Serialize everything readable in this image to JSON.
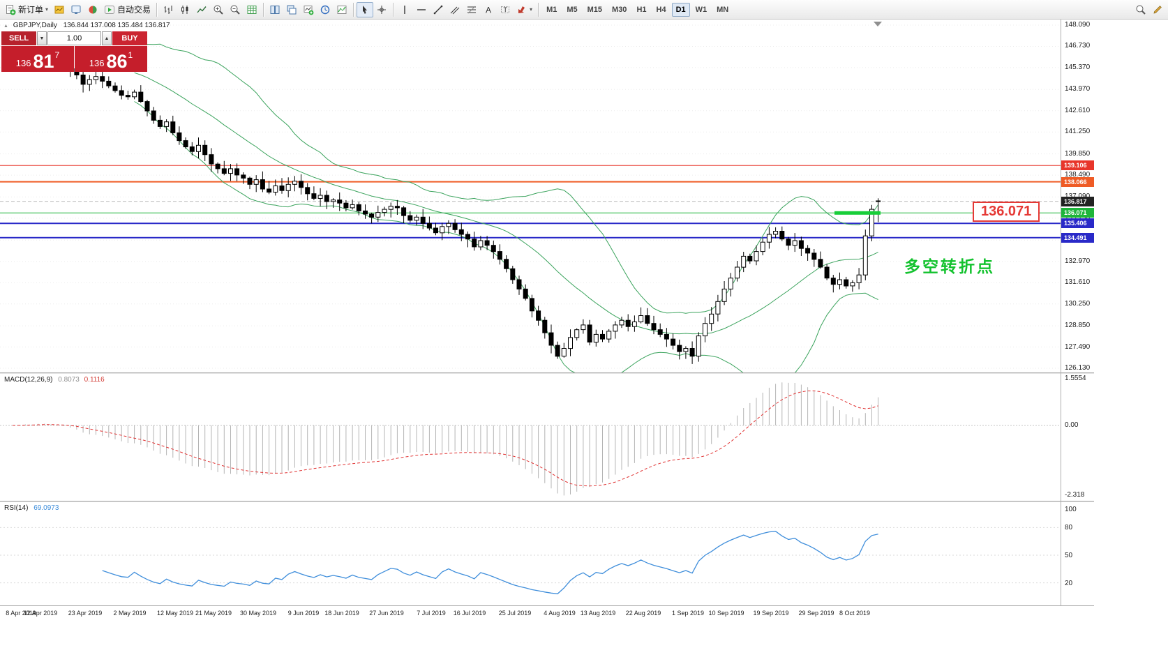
{
  "toolbar": {
    "new_order_label": "新订单",
    "autotrade_label": "自动交易",
    "timeframes": [
      "M1",
      "M5",
      "M15",
      "M30",
      "H1",
      "H4",
      "D1",
      "W1",
      "MN"
    ],
    "active_timeframe": "D1"
  },
  "icons": {
    "dropdown_caret": "▾",
    "spinner_up": "▲",
    "spinner_down": "▼",
    "collapse_toggle": "▲"
  },
  "chart": {
    "symbol_label": "GBPJPY,Daily",
    "ohlc_label": "136.844 137.008 135.484 136.817",
    "current_price_label": "136.817",
    "price_scale": [
      "148.090",
      "146.730",
      "145.370",
      "143.970",
      "142.610",
      "141.250",
      "139.850",
      "138.490",
      "137.090",
      "135.730",
      "134.330",
      "132.970",
      "131.610",
      "130.250",
      "128.850",
      "127.490",
      "126.130"
    ],
    "annotation_price": "136.071",
    "annotation_text": "多空转折点",
    "trade_panel": {
      "sell": "SELL",
      "buy": "BUY",
      "volume": "1.00",
      "sell_price_main": "136",
      "sell_price_big": "81",
      "sell_price_sup": "7",
      "buy_price_main": "136",
      "buy_price_big": "86",
      "buy_price_sup": "1"
    }
  },
  "chart_data": {
    "type": "candlestick",
    "symbol": "GBPJPY",
    "timeframe": "Daily",
    "price_axis": {
      "min": 126.13,
      "max": 148.09
    },
    "ohlc_current": {
      "open": 136.844,
      "high": 137.008,
      "low": 135.484,
      "close": 136.817
    },
    "closes": [
      145.9,
      146.0,
      146.2,
      145.9,
      146.3,
      146.1,
      145.8,
      145.5,
      145.7,
      145.3,
      144.9,
      144.3,
      144.6,
      144.8,
      144.5,
      144.2,
      143.9,
      143.6,
      143.5,
      143.8,
      143.2,
      142.6,
      142.0,
      141.6,
      141.9,
      141.2,
      140.7,
      140.3,
      140.0,
      140.4,
      139.8,
      139.2,
      138.9,
      138.6,
      138.9,
      138.5,
      138.3,
      137.9,
      138.2,
      137.6,
      137.4,
      137.8,
      137.5,
      137.9,
      138.1,
      137.7,
      137.3,
      137.0,
      137.2,
      136.8,
      136.9,
      136.7,
      136.4,
      136.6,
      136.2,
      136.0,
      135.8,
      136.1,
      136.3,
      136.5,
      136.4,
      135.9,
      135.6,
      135.8,
      135.4,
      135.1,
      134.8,
      135.2,
      135.4,
      135.0,
      134.7,
      134.4,
      133.9,
      134.3,
      134.0,
      133.6,
      133.1,
      132.5,
      131.8,
      131.2,
      130.6,
      129.8,
      129.2,
      128.4,
      127.6,
      126.9,
      127.4,
      128.1,
      128.6,
      128.9,
      127.8,
      128.3,
      128.0,
      128.5,
      128.9,
      129.2,
      128.8,
      129.1,
      129.5,
      129.0,
      128.6,
      128.3,
      128.0,
      127.6,
      127.2,
      127.4,
      126.9,
      128.2,
      129.0,
      129.6,
      130.4,
      131.2,
      131.9,
      132.6,
      133.3,
      133.0,
      133.6,
      134.2,
      134.7,
      134.9,
      134.4,
      134.0,
      134.3,
      133.8,
      133.5,
      133.1,
      132.6,
      131.9,
      131.5,
      131.8,
      131.4,
      131.6,
      132.1,
      134.6,
      136.3,
      136.817
    ],
    "x_labels": [
      {
        "label": "8 Apr 2019",
        "index": 0
      },
      {
        "label": "12 Apr 2019",
        "index": 4
      },
      {
        "label": "23 Apr 2019",
        "index": 11
      },
      {
        "label": "2 May 2019",
        "index": 18
      },
      {
        "label": "12 May 2019",
        "index": 25
      },
      {
        "label": "21 May 2019",
        "index": 31
      },
      {
        "label": "30 May 2019",
        "index": 38
      },
      {
        "label": "9 Jun 2019",
        "index": 45
      },
      {
        "label": "18 Jun 2019",
        "index": 51
      },
      {
        "label": "27 Jun 2019",
        "index": 58
      },
      {
        "label": "7 Jul 2019",
        "index": 65
      },
      {
        "label": "16 Jul 2019",
        "index": 71
      },
      {
        "label": "25 Jul 2019",
        "index": 78
      },
      {
        "label": "4 Aug 2019",
        "index": 85
      },
      {
        "label": "13 Aug 2019",
        "index": 91
      },
      {
        "label": "22 Aug 2019",
        "index": 98
      },
      {
        "label": "1 Sep 2019",
        "index": 105
      },
      {
        "label": "10 Sep 2019",
        "index": 111
      },
      {
        "label": "19 Sep 2019",
        "index": 118
      },
      {
        "label": "29 Sep 2019",
        "index": 125
      },
      {
        "label": "8 Oct 2019",
        "index": 131
      }
    ],
    "levels": [
      {
        "value": 139.106,
        "label": "139.106",
        "color": "#e8352a",
        "width": 1
      },
      {
        "value": 138.066,
        "label": "138.066",
        "color": "#ef5b25",
        "width": 2
      },
      {
        "value": 136.071,
        "label": "136.071",
        "color": "#1eb53a",
        "width": 1,
        "highlight": true
      },
      {
        "value": 135.406,
        "label": "135.406",
        "color": "#2929c8",
        "width": 2
      },
      {
        "value": 134.491,
        "label": "134.491",
        "color": "#2929c8",
        "width": 2
      }
    ],
    "indicators": {
      "bollinger": {
        "period": 20,
        "deviation": 2,
        "color": "#3aa35c"
      },
      "macd": {
        "label": "MACD(12,26,9)",
        "value_main": "0.8073",
        "value_signal": "0.1116",
        "max": 1.5554,
        "min": -2.318,
        "scale_labels": [
          "1.5554",
          "0.00",
          "-2.318"
        ]
      },
      "rsi": {
        "label": "RSI(14)",
        "value": "69.0973",
        "period": 14,
        "scale_labels": [
          "100",
          "80",
          "50",
          "20"
        ],
        "levels": [
          80,
          50,
          20
        ]
      }
    }
  }
}
